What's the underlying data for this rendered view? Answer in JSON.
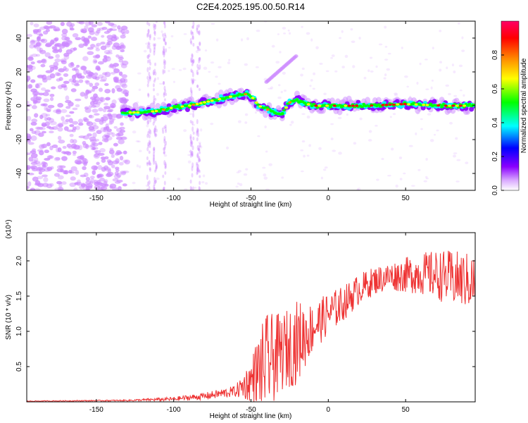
{
  "figure_title": "C2E4.2025.195.00.50.R14",
  "chart_data": [
    {
      "type": "heatmap",
      "xlabel": "Height of straight line (km)",
      "ylabel": "Frequency (Hz)",
      "xlim": [
        -195,
        95
      ],
      "ylim": [
        -50,
        50
      ],
      "xticks": [
        -150,
        -100,
        -50,
        0,
        50
      ],
      "yticks": [
        -40,
        -20,
        0,
        20,
        40
      ],
      "colorbar": {
        "label": "Normalized spectral amplitude",
        "range": [
          0,
          1
        ],
        "ticks": [
          0.0,
          0.2,
          0.4,
          0.6,
          0.8
        ],
        "colors": [
          "#ffffff",
          "#cc88ff",
          "#8800ff",
          "#0000ff",
          "#00ffff",
          "#00ff00",
          "#ffff00",
          "#ff8800",
          "#ff0000",
          "#ff0066"
        ]
      },
      "features": {
        "noise_region_x": [
          -195,
          -130
        ],
        "main_trace": [
          [
            -133,
            -4
          ],
          [
            -120,
            -4
          ],
          [
            -110,
            -3
          ],
          [
            -100,
            -1
          ],
          [
            -90,
            0
          ],
          [
            -80,
            2
          ],
          [
            -70,
            4
          ],
          [
            -60,
            6
          ],
          [
            -52,
            7
          ],
          [
            -48,
            4
          ],
          [
            -45,
            0
          ],
          [
            -40,
            -2
          ],
          [
            -35,
            -4
          ],
          [
            -30,
            -5
          ],
          [
            -25,
            2
          ],
          [
            -20,
            3
          ],
          [
            -10,
            0
          ],
          [
            0,
            0
          ],
          [
            25,
            0
          ],
          [
            50,
            1
          ],
          [
            75,
            0
          ],
          [
            95,
            0
          ]
        ],
        "upper_branch": [
          [
            -40,
            14
          ],
          [
            -35,
            18
          ],
          [
            -30,
            22
          ],
          [
            -25,
            26
          ],
          [
            -20,
            30
          ]
        ],
        "vertical_streaks_x": [
          -116,
          -112,
          -106,
          -88,
          -84
        ]
      }
    },
    {
      "type": "line",
      "title_exponent": "(x10⁴)",
      "xlabel": "Height of straight line (km)",
      "ylabel": "SNR (10 * v/v)",
      "xlim": [
        -195,
        95
      ],
      "ylim": [
        0,
        2.4
      ],
      "xticks": [
        -150,
        -100,
        -50,
        0,
        50
      ],
      "yticks": [
        0.5,
        1.0,
        1.5,
        2.0
      ],
      "ytick_labels": [
        "0.5",
        "1.0",
        "1.5",
        "2.0"
      ],
      "series": [
        {
          "color": "#ee3333",
          "trend": {
            "x": [
              -195,
              -130,
              -100,
              -80,
              -60,
              -50,
              -45,
              -40,
              -30,
              -20,
              -10,
              0,
              10,
              20,
              30,
              40,
              50,
              60,
              70,
              80,
              95
            ],
            "y": [
              0.01,
              0.02,
              0.04,
              0.08,
              0.15,
              0.3,
              0.45,
              0.55,
              0.7,
              0.85,
              1.05,
              1.25,
              1.4,
              1.6,
              1.72,
              1.78,
              1.8,
              1.82,
              1.8,
              1.75,
              1.7
            ]
          },
          "spread": {
            "x": [
              -195,
              -130,
              -100,
              -80,
              -60,
              -50,
              -45,
              -40,
              -30,
              -20,
              -10,
              0,
              10,
              20,
              30,
              40,
              50,
              60,
              70,
              80,
              95
            ],
            "y": [
              0.005,
              0.01,
              0.03,
              0.05,
              0.08,
              0.3,
              0.55,
              0.7,
              0.55,
              0.6,
              0.35,
              0.3,
              0.25,
              0.22,
              0.2,
              0.2,
              0.25,
              0.3,
              0.35,
              0.4,
              0.4
            ]
          }
        }
      ]
    }
  ]
}
